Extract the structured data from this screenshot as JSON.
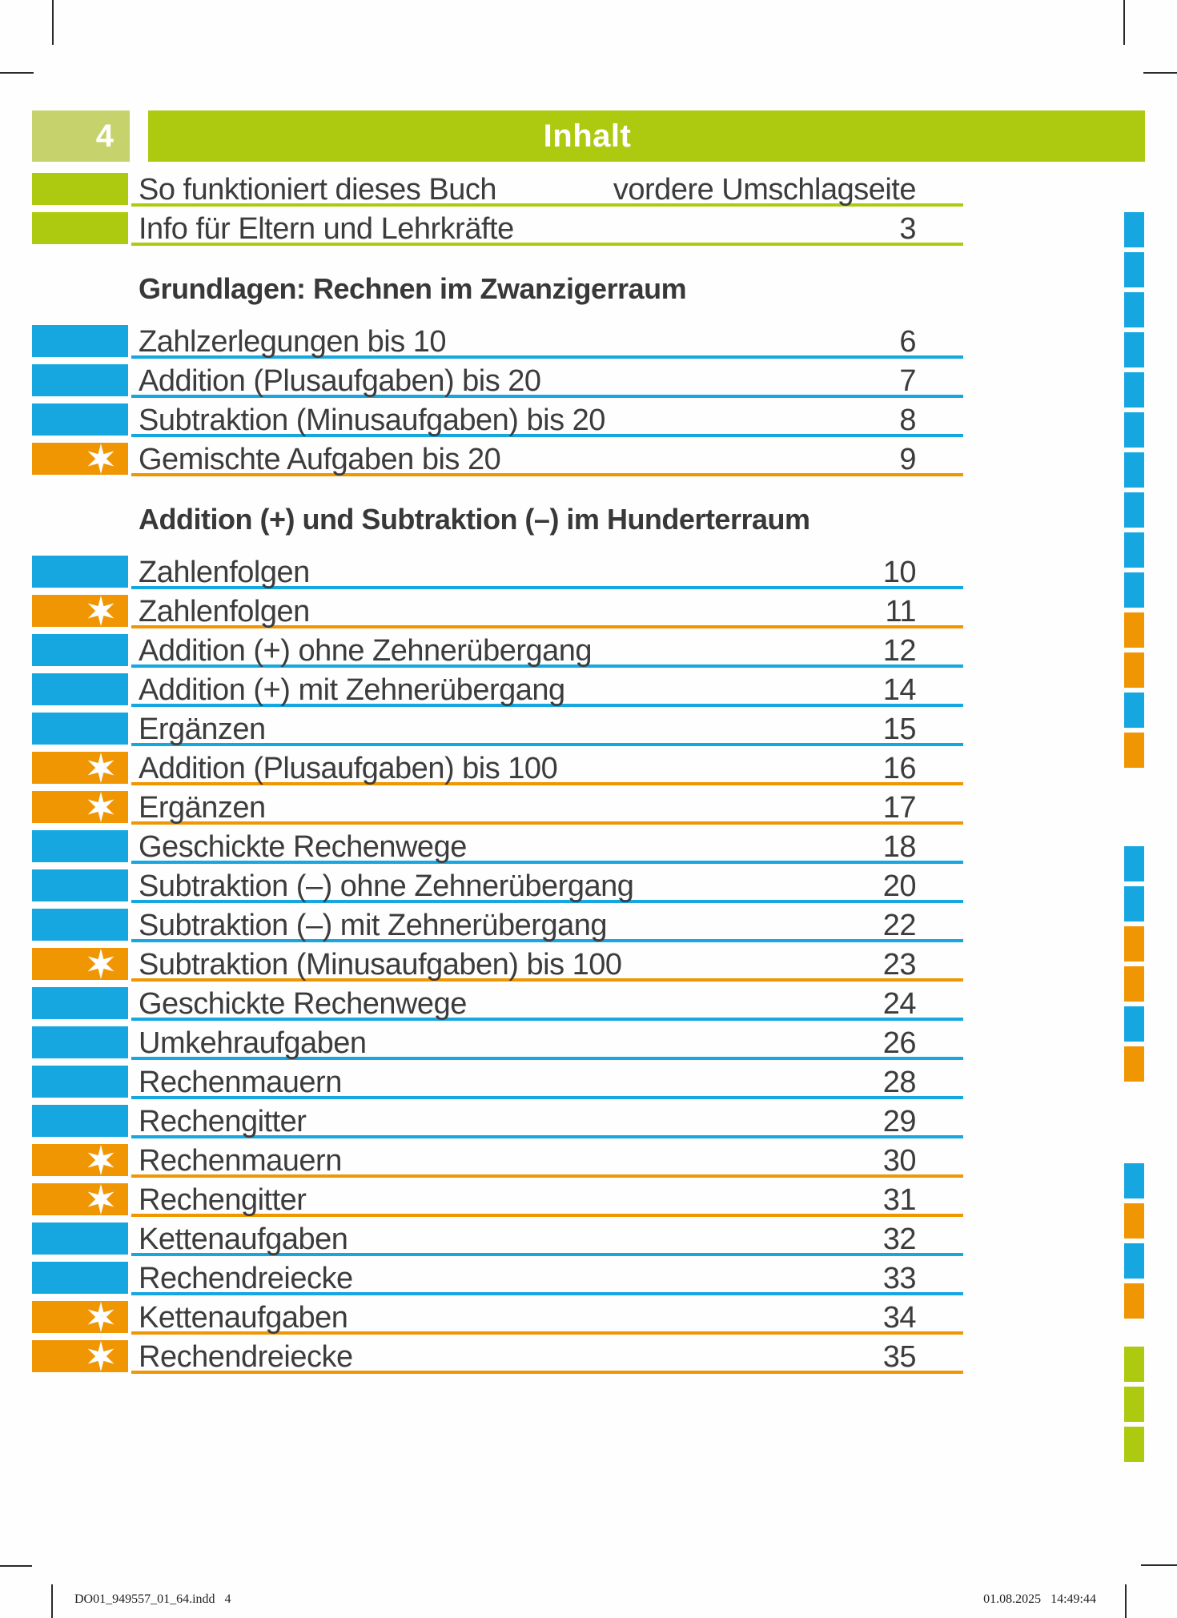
{
  "header": {
    "page_number": "4",
    "title": "Inhalt"
  },
  "colors": {
    "green": "#aeca10",
    "light_green": "#c6d36c",
    "blue": "#16a7e1",
    "orange": "#f09602",
    "text_gray": "#3c3c3c"
  },
  "intro_rows": [
    {
      "label": "So funktioniert dieses Buch",
      "page": "vordere Umschlagseite",
      "color": "green",
      "star": false
    },
    {
      "label": "Info für Eltern und Lehrkräfte",
      "page": "3",
      "color": "green",
      "star": false
    }
  ],
  "sections": [
    {
      "heading": "Grundlagen: Rechnen im Zwanzigerraum",
      "rows": [
        {
          "label": "Zahlzerlegungen bis 10",
          "page": "6",
          "color": "blue",
          "star": false
        },
        {
          "label": "Addition (Plusaufgaben) bis 20",
          "page": "7",
          "color": "blue",
          "star": false
        },
        {
          "label": "Subtraktion (Minusaufgaben) bis 20",
          "page": "8",
          "color": "blue",
          "star": false
        },
        {
          "label": "Gemischte Aufgaben bis 20",
          "page": "9",
          "color": "orange",
          "star": true
        }
      ]
    },
    {
      "heading": "Addition (+) und Subtraktion (–) im Hunderterraum",
      "rows": [
        {
          "label": "Zahlenfolgen",
          "page": "10",
          "color": "blue",
          "star": false
        },
        {
          "label": "Zahlenfolgen",
          "page": "11",
          "color": "orange",
          "star": true
        },
        {
          "label": "Addition (+) ohne Zehnerübergang",
          "page": "12",
          "color": "blue",
          "star": false
        },
        {
          "label": "Addition (+) mit Zehnerübergang",
          "page": "14",
          "color": "blue",
          "star": false
        },
        {
          "label": "Ergänzen",
          "page": "15",
          "color": "blue",
          "star": false
        },
        {
          "label": "Addition (Plusaufgaben) bis 100",
          "page": "16",
          "color": "orange",
          "star": true
        },
        {
          "label": "Ergänzen",
          "page": "17",
          "color": "orange",
          "star": true
        },
        {
          "label": "Geschickte Rechenwege",
          "page": "18",
          "color": "blue",
          "star": false
        },
        {
          "label": "Subtraktion (–) ohne Zehnerübergang",
          "page": "20",
          "color": "blue",
          "star": false
        },
        {
          "label": "Subtraktion (–) mit Zehnerübergang",
          "page": "22",
          "color": "blue",
          "star": false
        },
        {
          "label": "Subtraktion (Minusaufgaben) bis 100",
          "page": "23",
          "color": "orange",
          "star": true
        },
        {
          "label": "Geschickte Rechenwege",
          "page": "24",
          "color": "blue",
          "star": false
        },
        {
          "label": "Umkehraufgaben",
          "page": "26",
          "color": "blue",
          "star": false
        },
        {
          "label": "Rechenmauern",
          "page": "28",
          "color": "blue",
          "star": false
        },
        {
          "label": "Rechengitter",
          "page": "29",
          "color": "blue",
          "star": false
        },
        {
          "label": "Rechenmauern",
          "page": "30",
          "color": "orange",
          "star": true
        },
        {
          "label": "Rechengitter",
          "page": "31",
          "color": "orange",
          "star": true
        },
        {
          "label": "Kettenaufgaben",
          "page": "32",
          "color": "blue",
          "star": false
        },
        {
          "label": "Rechendreiecke",
          "page": "33",
          "color": "blue",
          "star": false
        },
        {
          "label": "Kettenaufgaben",
          "page": "34",
          "color": "orange",
          "star": true
        },
        {
          "label": "Rechendreiecke",
          "page": "35",
          "color": "orange",
          "star": true
        }
      ]
    }
  ],
  "edge_tabs": {
    "groups": [
      {
        "tabs": [
          "blue",
          "blue",
          "blue",
          "blue",
          "blue",
          "blue",
          "blue",
          "blue",
          "blue",
          "blue",
          "orange",
          "orange",
          "blue",
          "orange"
        ]
      },
      {
        "tabs": [
          "blue",
          "blue",
          "orange",
          "orange",
          "blue",
          "orange"
        ]
      },
      {
        "tabs": [
          "blue",
          "orange",
          "blue",
          "orange"
        ]
      },
      {
        "tabs": [
          "green",
          "green",
          "green"
        ]
      }
    ]
  },
  "footer": {
    "left": "DO01_949557_01_64.indd   4",
    "right": "01.08.2025   14:49:44"
  }
}
